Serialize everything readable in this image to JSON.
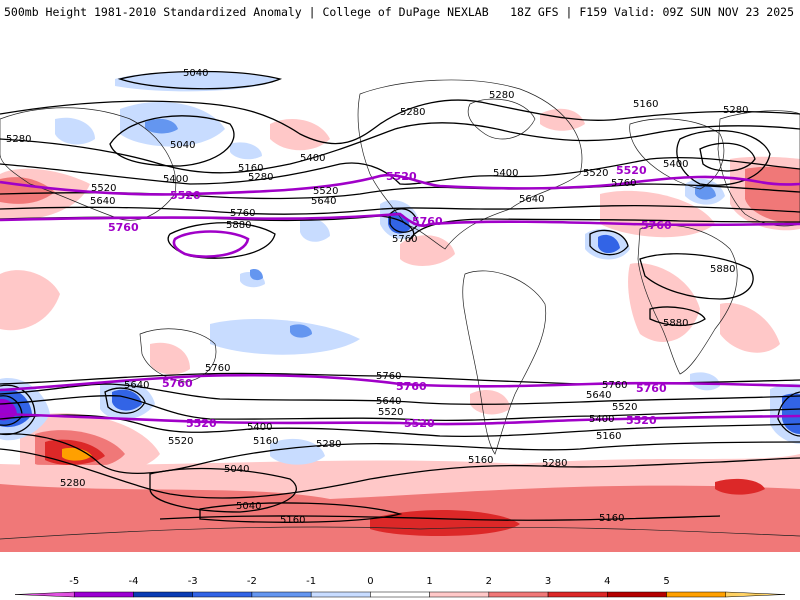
{
  "header": {
    "left_title": "500mb Height 1981-2010 Standardized Anomaly | College of DuPage NEXLAB",
    "right_title": "18Z GFS | F159 Valid: 09Z SUN NOV 23 2025"
  },
  "colorbar": {
    "ticks": [
      "-5",
      "-4",
      "-3",
      "-2",
      "-1",
      "0",
      "1",
      "2",
      "3",
      "4",
      "5"
    ],
    "colors": [
      "#e050e0",
      "#9b00d2",
      "#0a3cb4",
      "#3264e6",
      "#6496f0",
      "#c8dcff",
      "#ffffff",
      "#ffc8c8",
      "#f07878",
      "#dc2828",
      "#b40000",
      "#ffa000",
      "#ffd264"
    ]
  },
  "contour_labels": {
    "c5040": "5040",
    "c5160": "5160",
    "c5280": "5280",
    "c5400": "5400",
    "c5520": "5520",
    "c5640": "5640",
    "c5760": "5760",
    "c5880": "5880"
  },
  "highlight_labels": {
    "p5520": "5520",
    "p5760": "5760"
  },
  "colors": {
    "highlight_contour": "#a000c8",
    "neg1": "#c8dcff",
    "neg2": "#6496f0",
    "neg3": "#3264e6",
    "neg4": "#0a3cb4",
    "pos1": "#ffc8c8",
    "pos2": "#f07878",
    "pos3": "#dc2828",
    "pos4": "#b40000",
    "pos5": "#ffa000"
  }
}
